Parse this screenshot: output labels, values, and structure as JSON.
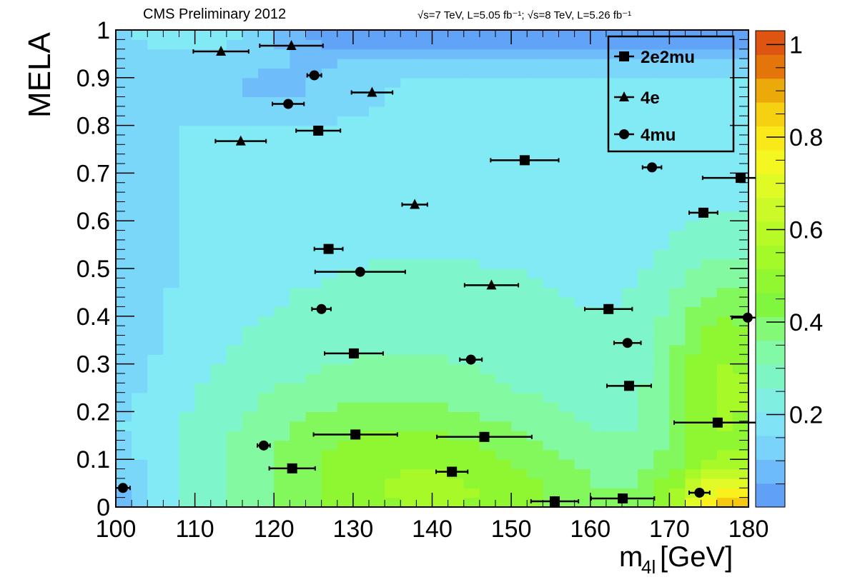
{
  "header": {
    "left_title": "CMS Preliminary 2012",
    "right_title": "√s=7 TeV, L=5.05 fb⁻¹; √s=8 TeV, L=5.26 fb⁻¹"
  },
  "chart_data": {
    "type": "scatter",
    "title": "CMS Preliminary 2012",
    "xlabel": "m4l [GeV]",
    "ylabel": "MELA",
    "xlim": [
      100,
      180
    ],
    "ylim": [
      0,
      1
    ],
    "x_ticks": [
      100,
      110,
      120,
      130,
      140,
      150,
      160,
      170,
      180
    ],
    "x_tick_labels": [
      "100",
      "110",
      "120",
      "130",
      "140",
      "150",
      "160",
      "170",
      "180"
    ],
    "y_ticks": [
      0,
      0.1,
      0.2,
      0.3,
      0.4,
      0.5,
      0.6,
      0.7,
      0.8,
      0.9,
      1
    ],
    "y_tick_labels": [
      "0",
      "0.1",
      "0.2",
      "0.3",
      "0.4",
      "0.5",
      "0.6",
      "0.7",
      "0.8",
      "0.9",
      "1"
    ],
    "colorbar": {
      "range": [
        0,
        1.03
      ],
      "ticks": [
        0.2,
        0.4,
        0.6,
        0.8,
        1
      ],
      "tick_labels": [
        "0.2",
        "0.4",
        "0.6",
        "0.8",
        "1"
      ]
    },
    "legend": {
      "placement": "top-right",
      "entries": [
        "2e2mu",
        "4e",
        "4mu"
      ]
    },
    "background": {
      "type": "heatmap",
      "description_kind": "2D background density, blue to orange"
    },
    "series": [
      {
        "name": "2e2mu",
        "marker": "square",
        "points": [
          {
            "x": 125.6,
            "y": 0.789,
            "xerr": 2.8
          },
          {
            "x": 151.7,
            "y": 0.727,
            "xerr": 4.3
          },
          {
            "x": 179.0,
            "y": 0.69,
            "xerr": 4.8
          },
          {
            "x": 174.3,
            "y": 0.617,
            "xerr": 1.8
          },
          {
            "x": 126.9,
            "y": 0.541,
            "xerr": 1.8
          },
          {
            "x": 162.3,
            "y": 0.415,
            "xerr": 3.0
          },
          {
            "x": 130.1,
            "y": 0.322,
            "xerr": 3.7
          },
          {
            "x": 164.9,
            "y": 0.254,
            "xerr": 2.8
          },
          {
            "x": 176.1,
            "y": 0.177,
            "xerr": 5.5
          },
          {
            "x": 130.3,
            "y": 0.152,
            "xerr": 5.3
          },
          {
            "x": 146.6,
            "y": 0.147,
            "xerr": 6.0
          },
          {
            "x": 122.3,
            "y": 0.081,
            "xerr": 2.9
          },
          {
            "x": 142.5,
            "y": 0.074,
            "xerr": 2.0
          },
          {
            "x": 155.5,
            "y": 0.012,
            "xerr": 3.0
          },
          {
            "x": 164.1,
            "y": 0.018,
            "xerr": 4.0
          }
        ]
      },
      {
        "name": "4e",
        "marker": "triangle",
        "points": [
          {
            "x": 113.3,
            "y": 0.955,
            "xerr": 3.5
          },
          {
            "x": 122.2,
            "y": 0.967,
            "xerr": 4.0
          },
          {
            "x": 132.4,
            "y": 0.869,
            "xerr": 2.6
          },
          {
            "x": 115.8,
            "y": 0.767,
            "xerr": 3.2
          },
          {
            "x": 137.8,
            "y": 0.634,
            "xerr": 1.6
          },
          {
            "x": 147.5,
            "y": 0.465,
            "xerr": 3.4
          }
        ]
      },
      {
        "name": "4mu",
        "marker": "circle",
        "points": [
          {
            "x": 125.1,
            "y": 0.905,
            "xerr": 0.9
          },
          {
            "x": 121.8,
            "y": 0.845,
            "xerr": 2.0
          },
          {
            "x": 167.8,
            "y": 0.712,
            "xerr": 1.2
          },
          {
            "x": 130.9,
            "y": 0.493,
            "xerr": 5.7
          },
          {
            "x": 126.0,
            "y": 0.415,
            "xerr": 1.2
          },
          {
            "x": 144.9,
            "y": 0.309,
            "xerr": 1.4
          },
          {
            "x": 164.7,
            "y": 0.344,
            "xerr": 1.7
          },
          {
            "x": 179.9,
            "y": 0.397,
            "xerr": 2.0
          },
          {
            "x": 118.7,
            "y": 0.129,
            "xerr": 0.8
          },
          {
            "x": 100.9,
            "y": 0.04,
            "xerr": 0.9
          },
          {
            "x": 173.8,
            "y": 0.03,
            "xerr": 1.3
          }
        ]
      }
    ]
  }
}
